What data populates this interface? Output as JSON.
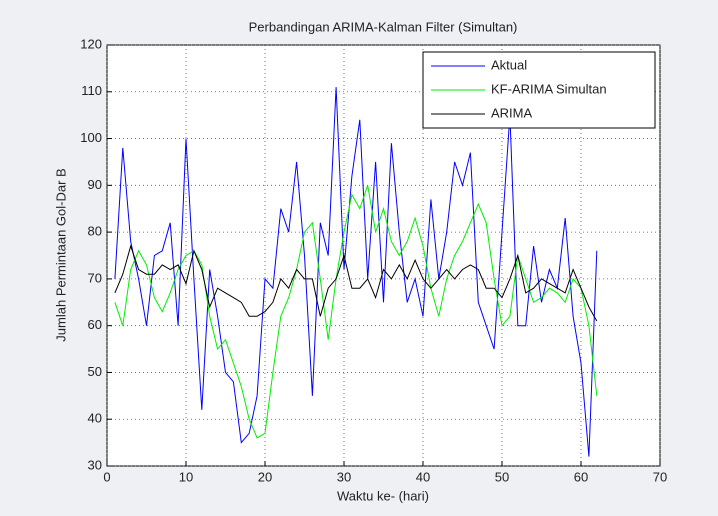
{
  "chart_data": {
    "type": "line",
    "title": "Perbandingan ARIMA-Kalman Filter (Simultan)",
    "x_label": "Waktu ke- (hari)",
    "y_label": "Jumlah Permintaan Gol-Dar B",
    "x": [
      1,
      2,
      3,
      4,
      5,
      6,
      7,
      8,
      9,
      10,
      11,
      12,
      13,
      14,
      15,
      16,
      17,
      18,
      19,
      20,
      21,
      22,
      23,
      24,
      25,
      26,
      27,
      28,
      29,
      30,
      31,
      32,
      33,
      34,
      35,
      36,
      37,
      38,
      39,
      40,
      41,
      42,
      43,
      44,
      45,
      46,
      47,
      48,
      49,
      50,
      51,
      52,
      53,
      54,
      55,
      56,
      57,
      58,
      59,
      60,
      61,
      62
    ],
    "series": [
      {
        "name": "Aktual",
        "color": "#0000ff",
        "values": [
          70,
          98,
          78,
          70,
          60,
          75,
          76,
          82,
          60,
          100,
          70,
          42,
          72,
          62,
          50,
          48,
          35,
          37,
          45,
          70,
          68,
          85,
          80,
          95,
          75,
          45,
          82,
          75,
          111,
          72,
          92,
          104,
          70,
          95,
          65,
          99,
          80,
          65,
          70,
          62,
          87,
          70,
          80,
          95,
          90,
          97,
          65,
          60,
          55,
          80,
          105,
          60,
          60,
          77,
          65,
          72,
          68,
          83,
          62,
          52,
          32,
          76
        ]
      },
      {
        "name": "KF-ARIMA Simultan",
        "color": "#00ee00",
        "values": [
          65,
          60,
          72,
          76,
          73,
          66,
          63,
          67,
          72,
          75,
          76,
          73,
          62,
          55,
          57,
          52,
          47,
          40,
          36,
          37,
          50,
          62,
          66,
          72,
          80,
          82,
          70,
          57,
          70,
          80,
          88,
          85,
          90,
          80,
          85,
          78,
          75,
          78,
          83,
          77,
          68,
          62,
          70,
          75,
          78,
          82,
          86,
          82,
          70,
          60,
          62,
          75,
          70,
          65,
          66,
          68,
          67,
          65,
          70,
          68,
          60,
          45
        ]
      },
      {
        "name": "ARIMA",
        "color": "#000000",
        "values": [
          67,
          71,
          77,
          72,
          71,
          71,
          73,
          72,
          73,
          69,
          76,
          72,
          64,
          68,
          67,
          66,
          65,
          62,
          62,
          63,
          65,
          70,
          68,
          72,
          70,
          70,
          62,
          68,
          70,
          75,
          68,
          68,
          70,
          66,
          72,
          70,
          73,
          70,
          74,
          70,
          68,
          70,
          72,
          70,
          72,
          73,
          72,
          68,
          68,
          66,
          70,
          75,
          67,
          68,
          70,
          69,
          68,
          67,
          72,
          68,
          64,
          61
        ]
      }
    ],
    "xlim": [
      0,
      70
    ],
    "xticks": [
      0,
      10,
      20,
      30,
      40,
      50,
      60,
      70
    ],
    "ylim": [
      30,
      120
    ],
    "yticks": [
      30,
      40,
      50,
      60,
      70,
      80,
      90,
      100,
      110,
      120
    ],
    "grid": true,
    "legend": "upper right"
  }
}
